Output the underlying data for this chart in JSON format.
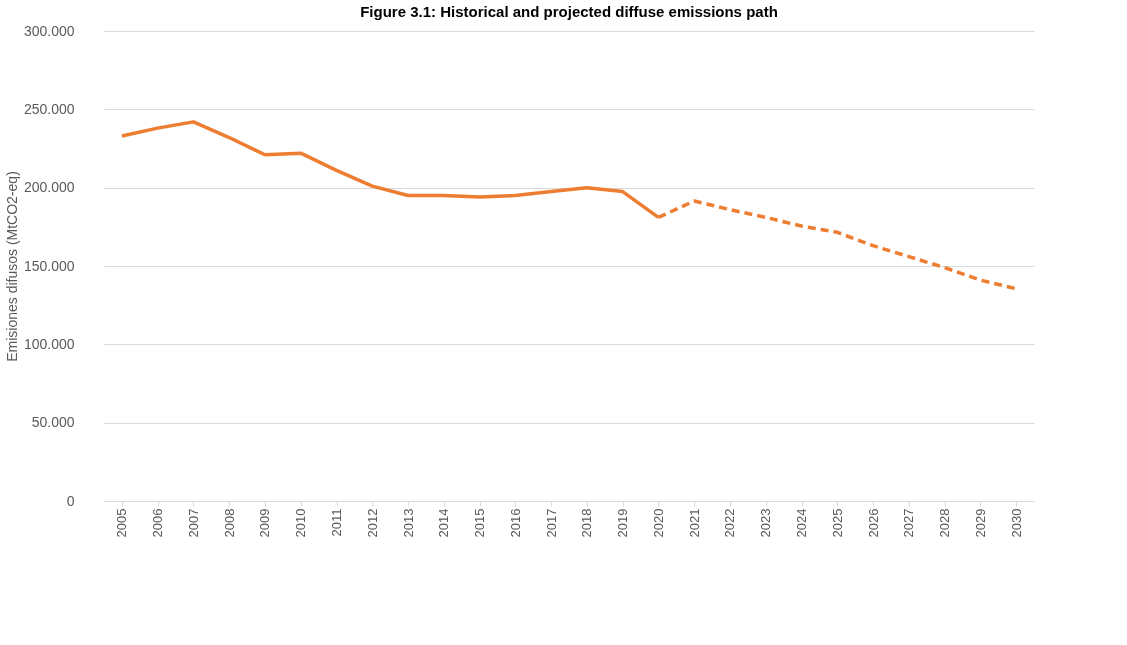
{
  "chart_data": {
    "type": "line",
    "title": "Figure 3.1: Historical and projected diffuse emissions path",
    "ylabel": "Emisiones difusos (MtCO2-eq)",
    "categories": [
      "2005",
      "2006",
      "2007",
      "2008",
      "2009",
      "2010",
      "2011",
      "2012",
      "2013",
      "2014",
      "2015",
      "2016",
      "2017",
      "2018",
      "2019",
      "2020",
      "2021",
      "2022",
      "2023",
      "2024",
      "2025",
      "2026",
      "2027",
      "2028",
      "2029",
      "2030"
    ],
    "series": [
      {
        "color": "#ed7d31",
        "line_style": "solid",
        "values": [
          233,
          238,
          242,
          232,
          221,
          222,
          211,
          201,
          195,
          195,
          194,
          195,
          197.5,
          200,
          197.5,
          181,
          null,
          null,
          null,
          null,
          null,
          null,
          null,
          null,
          null,
          null
        ]
      },
      {
        "color": "#ed7d31",
        "line_style": "dashed",
        "values": [
          null,
          null,
          null,
          null,
          null,
          null,
          null,
          null,
          null,
          null,
          null,
          null,
          null,
          null,
          null,
          181,
          191.5,
          186,
          181,
          175.5,
          171.5,
          163,
          156,
          149,
          141,
          135.5
        ]
      }
    ],
    "ylim": [
      0,
      300
    ],
    "yticks": [
      {
        "value": 0,
        "label": "0"
      },
      {
        "value": 50,
        "label": "50.000"
      },
      {
        "value": 100,
        "label": "100.000"
      },
      {
        "value": 150,
        "label": "150.000"
      },
      {
        "value": 200,
        "label": "200.000"
      },
      {
        "value": 250,
        "label": "250.000"
      },
      {
        "value": 300,
        "label": "300.000"
      }
    ],
    "grid": "y"
  }
}
